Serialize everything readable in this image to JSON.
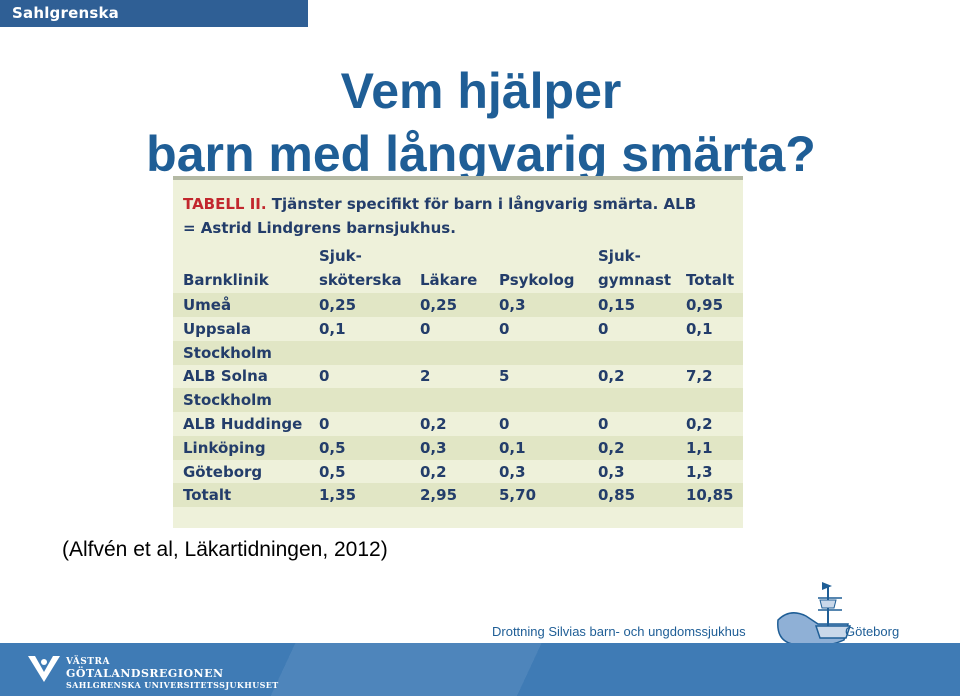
{
  "header": {
    "org_name": "Sahlgrenska Universitetssjukhuset"
  },
  "slide": {
    "title_line1": "Vem hjälper",
    "title_line2": "barn med långvarig smärta?",
    "citation": "(Alfvén et al, Läkartidningen, 2012)"
  },
  "table": {
    "caption_lead": "TABELL II.",
    "caption_rest": " Tjänster specifikt för barn i långvarig smärta. ALB = Astrid Lindgrens barnsjukhus.",
    "header_top": [
      "",
      "Sjuk-",
      "",
      "",
      "Sjuk-",
      ""
    ],
    "header_main": [
      "Barnklinik",
      "sköterska",
      "Läkare",
      "Psykolog",
      "gymnast",
      "Totalt"
    ],
    "rows": [
      [
        "Umeå",
        "0,25",
        "0,25",
        "0,3",
        "0,15",
        "0,95"
      ],
      [
        "Uppsala",
        "0,1",
        "0",
        "0",
        "0",
        "0,1"
      ],
      [
        "Stockholm",
        "",
        "",
        "",
        "",
        ""
      ],
      [
        "ALB Solna",
        "0",
        "2",
        "5",
        "0,2",
        "7,2"
      ],
      [
        "Stockholm",
        "",
        "",
        "",
        "",
        ""
      ],
      [
        "ALB Huddinge",
        "0",
        "0,2",
        "0",
        "0",
        "0,2"
      ],
      [
        "Linköping",
        "0,5",
        "0,3",
        "0,1",
        "0,2",
        "1,1"
      ],
      [
        "Göteborg",
        "0,5",
        "0,2",
        "0,3",
        "0,3",
        "1,3"
      ],
      [
        "Totalt",
        "1,35",
        "2,95",
        "5,70",
        "0,85",
        "10,85"
      ]
    ]
  },
  "footer": {
    "hospital_name": "Drottning Silvias barn- och ungdomssjukhus",
    "city": "Göteborg",
    "org_line1": "VÄSTRA",
    "org_line2": "GÖTALANDSREGIONEN",
    "org_line3": "SAHLGRENSKA UNIVERSITETSSJUKHUSET"
  },
  "icons": [
    "vgr-logo-icon",
    "ship-logo-icon"
  ],
  "colors": {
    "brand_blue": "#1f5e96",
    "header_bar": "#2f5f95",
    "footer_bar": "#3f7bb5",
    "table_bg": "#eef1da",
    "table_red": "#c2272d",
    "table_text": "#233d6a"
  }
}
